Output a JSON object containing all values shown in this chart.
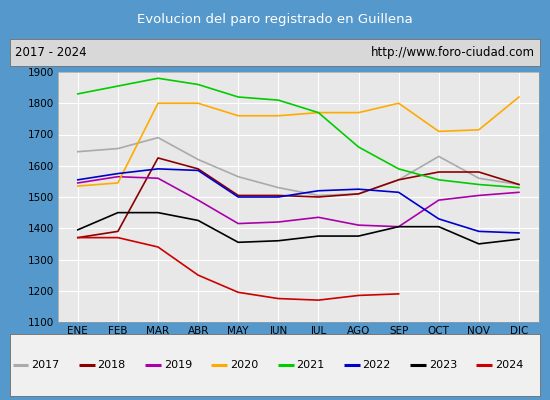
{
  "title": "Evolucion del paro registrado en Guillena",
  "subtitle_left": "2017 - 2024",
  "subtitle_right": "http://www.foro-ciudad.com",
  "x_labels": [
    "ENE",
    "FEB",
    "MAR",
    "ABR",
    "MAY",
    "JUN",
    "JUL",
    "AGO",
    "SEP",
    "OCT",
    "NOV",
    "DIC"
  ],
  "ylim": [
    1100,
    1900
  ],
  "yticks": [
    1100,
    1200,
    1300,
    1400,
    1500,
    1600,
    1700,
    1800,
    1900
  ],
  "series": {
    "2017": {
      "color": "#aaaaaa",
      "data": [
        1645,
        1655,
        1690,
        1620,
        1565,
        1530,
        1505,
        1510,
        1555,
        1630,
        1560,
        1540
      ]
    },
    "2018": {
      "color": "#8b0000",
      "data": [
        1370,
        1390,
        1625,
        1590,
        1505,
        1505,
        1500,
        1510,
        1555,
        1580,
        1580,
        1540
      ]
    },
    "2019": {
      "color": "#aa00aa",
      "data": [
        1545,
        1565,
        1560,
        1490,
        1415,
        1420,
        1435,
        1410,
        1405,
        1490,
        1505,
        1515
      ]
    },
    "2020": {
      "color": "#ffaa00",
      "data": [
        1535,
        1545,
        1800,
        1800,
        1760,
        1760,
        1770,
        1770,
        1800,
        1710,
        1715,
        1820
      ]
    },
    "2021": {
      "color": "#00cc00",
      "data": [
        1830,
        1855,
        1880,
        1860,
        1820,
        1810,
        1770,
        1660,
        1590,
        1555,
        1540,
        1530
      ]
    },
    "2022": {
      "color": "#0000cc",
      "data": [
        1555,
        1575,
        1590,
        1585,
        1500,
        1500,
        1520,
        1525,
        1515,
        1430,
        1390,
        1385
      ]
    },
    "2023": {
      "color": "#000000",
      "data": [
        1395,
        1450,
        1450,
        1425,
        1355,
        1360,
        1375,
        1375,
        1405,
        1405,
        1350,
        1365
      ]
    },
    "2024": {
      "color": "#cc0000",
      "data": [
        1370,
        1370,
        1340,
        1250,
        1195,
        1175,
        1170,
        1185,
        1190,
        null,
        null,
        null
      ]
    }
  },
  "title_bg": "#4a8fd0",
  "title_color": "#ffffff",
  "plot_bg": "#e8e8e8",
  "grid_color": "#ffffff",
  "outer_bg": "#5599cc",
  "subtitle_bg": "#d8d8d8",
  "legend_bg": "#f0f0f0"
}
